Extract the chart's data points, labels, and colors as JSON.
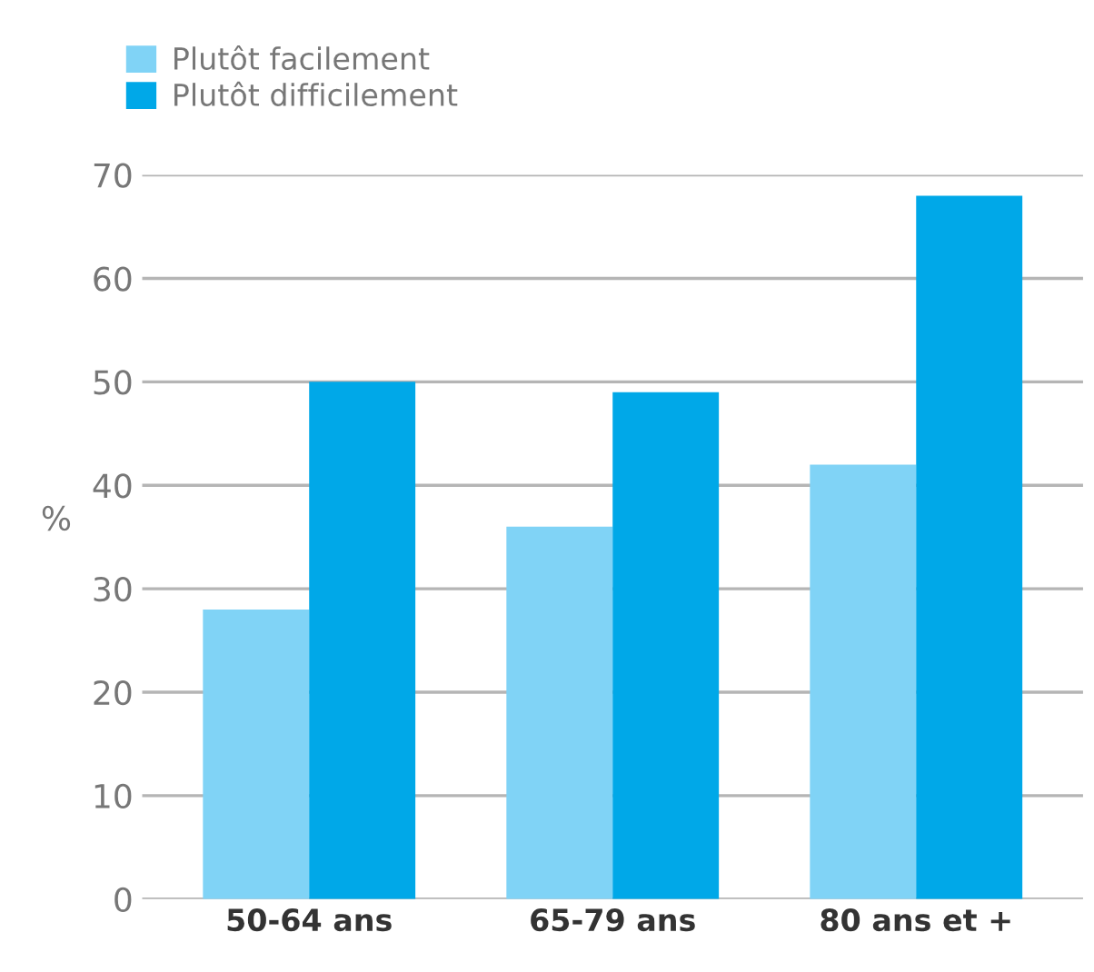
{
  "chart_data": {
    "type": "bar",
    "ylabel": "%",
    "categories": [
      "50-64 ans",
      "65-79 ans",
      "80 ans et +"
    ],
    "series": [
      {
        "name": "Plutôt facilement",
        "color": "#80d3f6",
        "values": [
          28,
          36,
          42
        ]
      },
      {
        "name": "Plutôt difficilement",
        "color": "#00a8e8",
        "values": [
          50,
          49,
          68
        ]
      }
    ],
    "ylim": [
      0,
      70
    ],
    "yticks": [
      0,
      10,
      20,
      30,
      40,
      50,
      60,
      70
    ],
    "grid": "y",
    "legend": "top left"
  }
}
